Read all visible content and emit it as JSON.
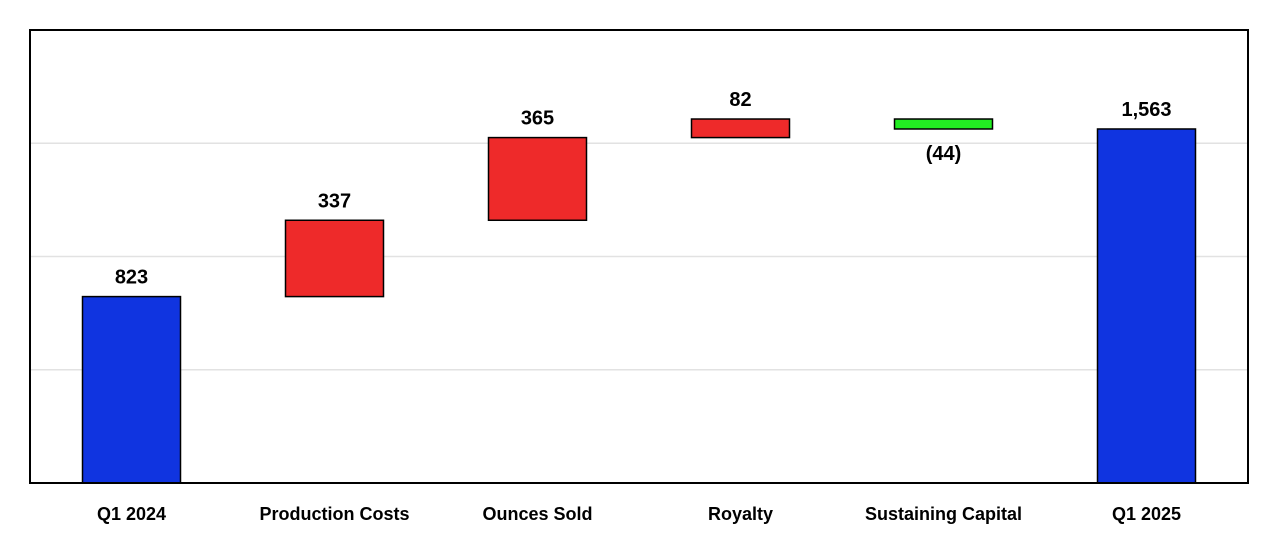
{
  "chart_data": {
    "type": "waterfall",
    "categories": [
      "Q1 2024",
      "Production Costs",
      "Ounces Sold",
      "Royalty",
      "Sustaining Capital",
      "Q1 2025"
    ],
    "steps": [
      {
        "category": "Q1 2024",
        "kind": "total",
        "value": 823,
        "label": "823"
      },
      {
        "category": "Production Costs",
        "kind": "increase",
        "value": 337,
        "label": "337"
      },
      {
        "category": "Ounces Sold",
        "kind": "increase",
        "value": 365,
        "label": "365"
      },
      {
        "category": "Royalty",
        "kind": "increase",
        "value": 82,
        "label": "82"
      },
      {
        "category": "Sustaining Capital",
        "kind": "decrease",
        "value": -44,
        "label": "(44)"
      },
      {
        "category": "Q1 2025",
        "kind": "total",
        "value": 1563,
        "label": "1,563"
      }
    ],
    "ylim": [
      0,
      2000
    ],
    "grid": true,
    "legend": "none",
    "colors": {
      "total": "#1034e0",
      "increase": "#ee2a2a",
      "decrease": "#22ee22",
      "border": "#000000",
      "grid": "#e2e2e2"
    }
  }
}
